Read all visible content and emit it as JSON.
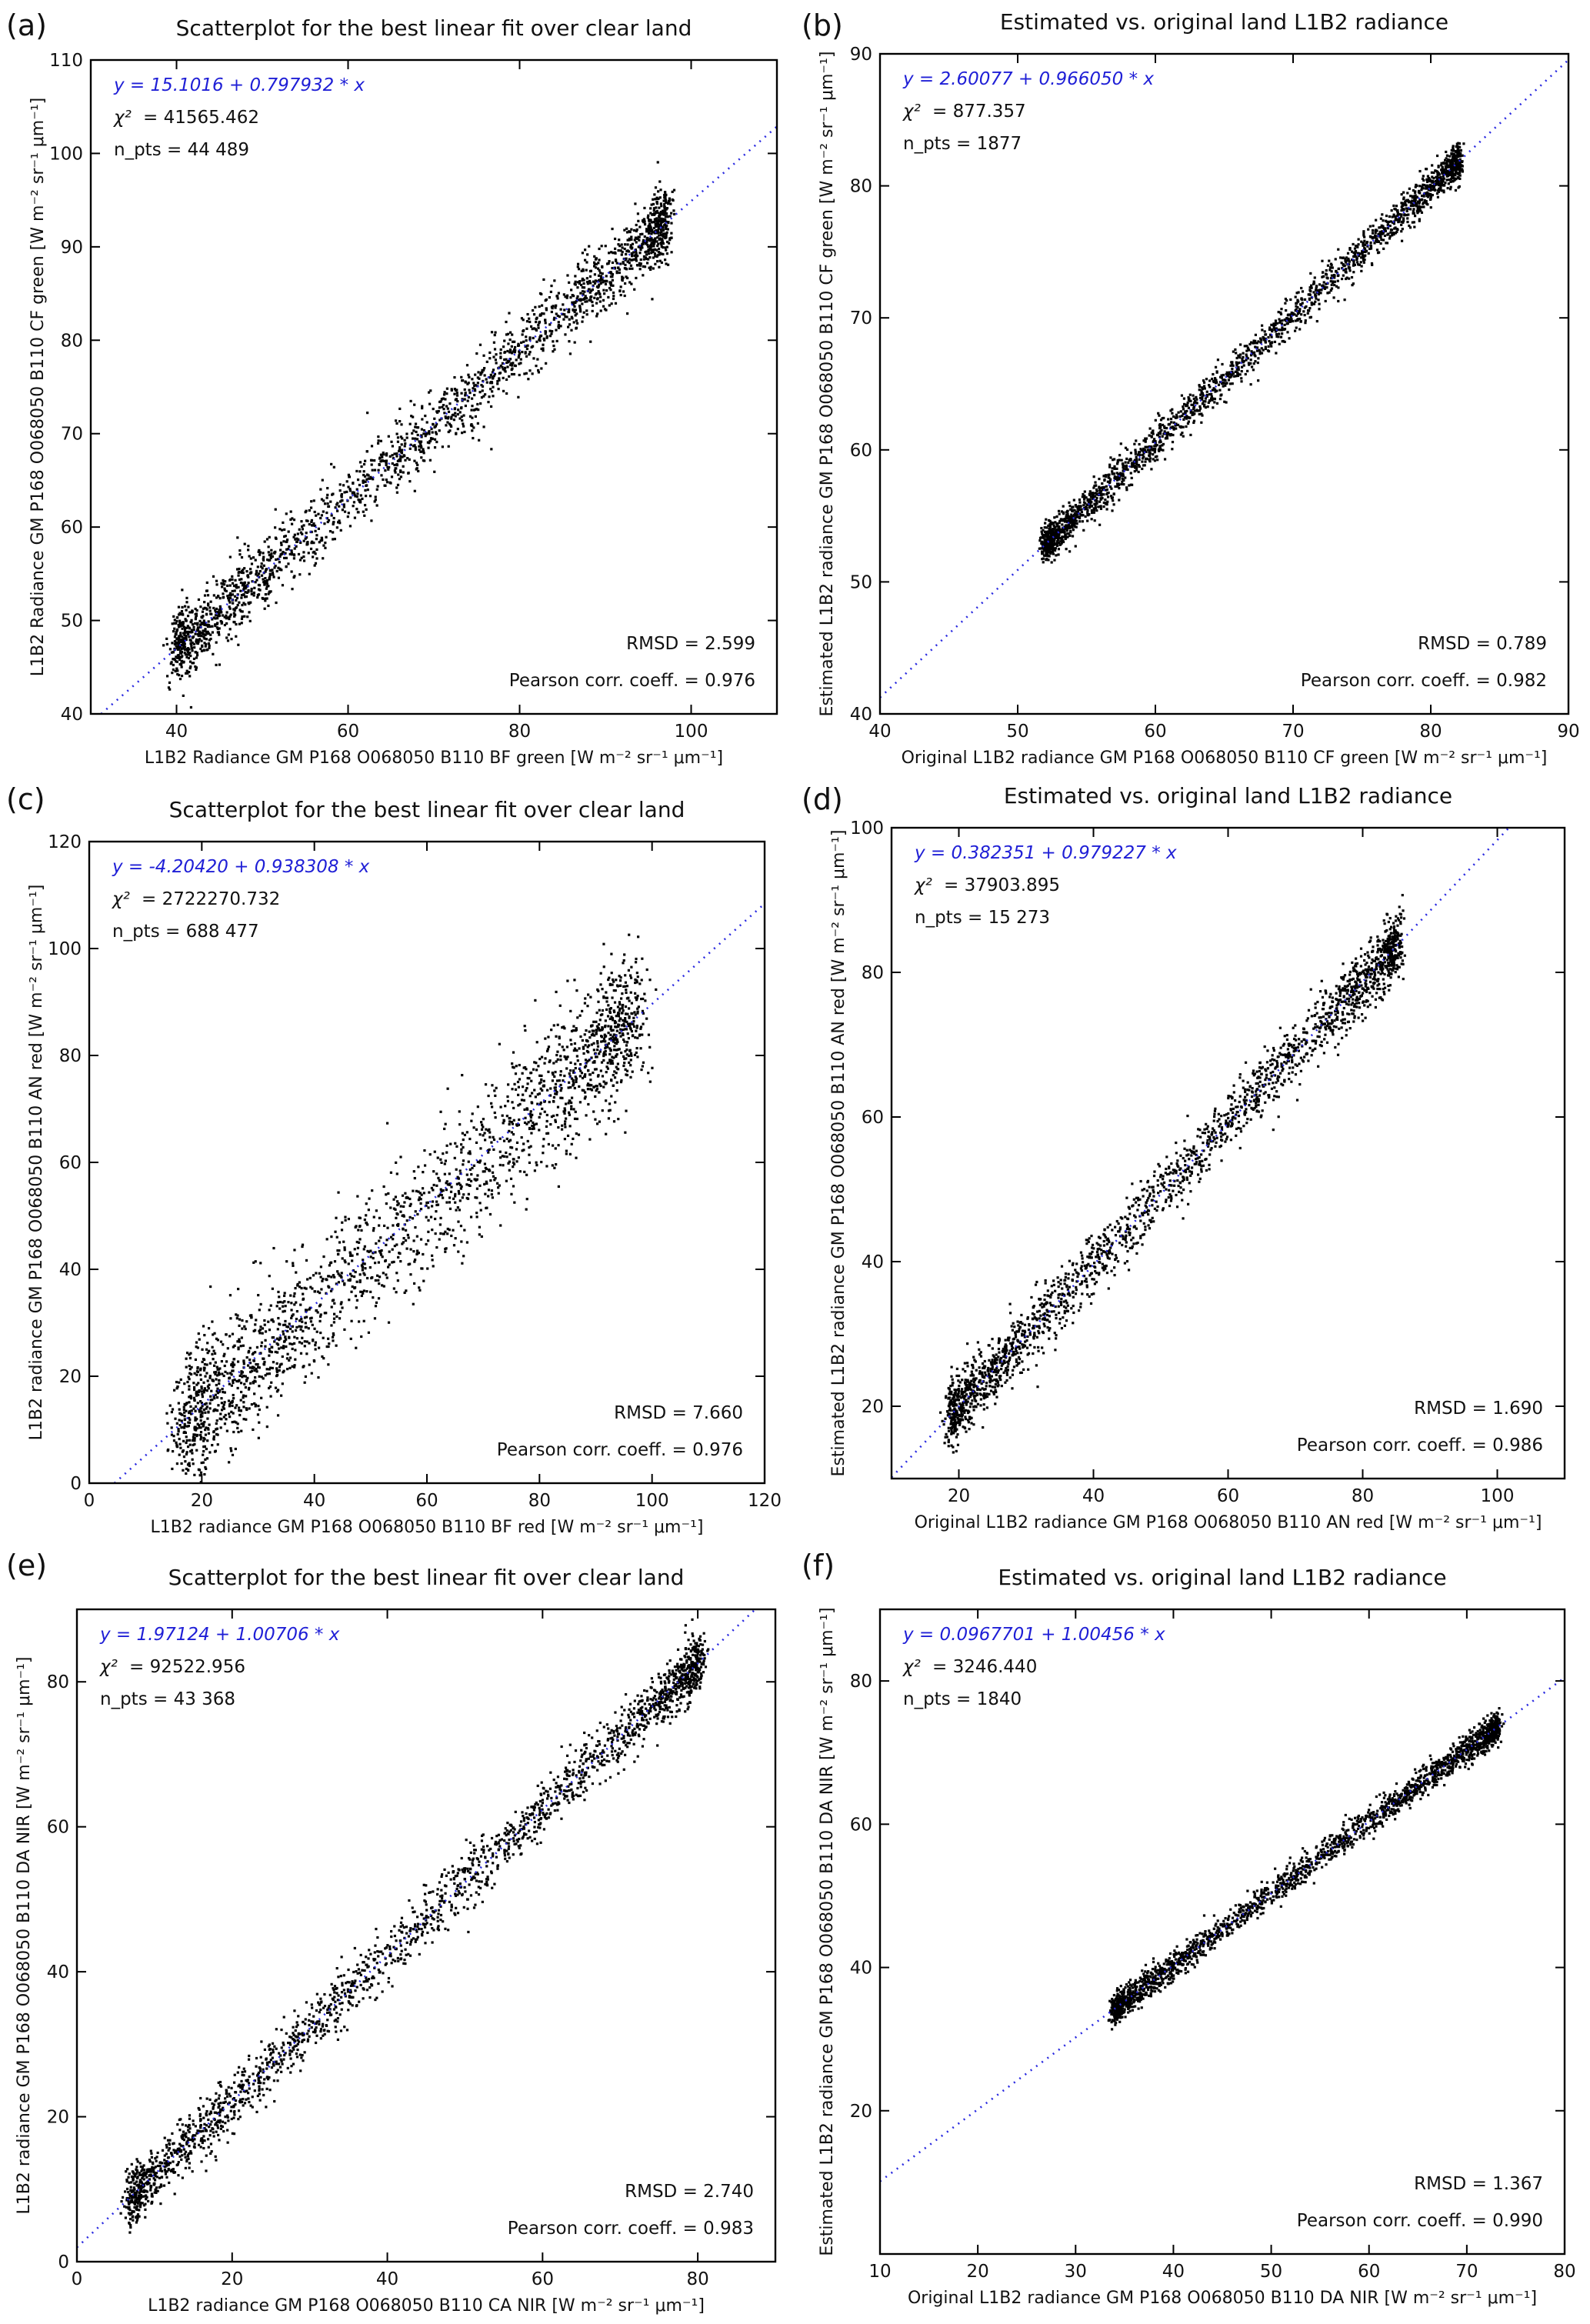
{
  "chart_data": [
    {
      "panel_label": "(a)",
      "type": "scatter",
      "title": "Scatterplot for the best linear fit over clear land",
      "xlabel": "L1B2 Radiance GM P168 O068050 B110 BF green [W m⁻² sr⁻¹ μm⁻¹]",
      "ylabel": "L1B2 Radiance GM P168 O068050 B110 CF green [W m⁻² sr⁻¹ μm⁻¹]",
      "xlim": [
        30,
        110
      ],
      "ylim": [
        40,
        110
      ],
      "xticks": [
        40,
        60,
        80,
        100
      ],
      "yticks": [
        40,
        50,
        60,
        70,
        80,
        90,
        100,
        110
      ],
      "fit": {
        "equation": "y = 15.1016 + 0.797932 * x",
        "intercept": 15.1016,
        "slope": 0.797932
      },
      "chi2_label": "χ²",
      "chi2": "= 41565.462",
      "n_pts": "n_pts = 44 489",
      "rmsd": "RMSD = 2.599",
      "pearson": "Pearson corr. coeff. = 0.976",
      "cloud": {
        "x_range": [
          40,
          97
        ],
        "spread": 1.9
      }
    },
    {
      "panel_label": "(b)",
      "type": "scatter",
      "title": "Estimated vs. original land L1B2 radiance",
      "xlabel": "Original L1B2 radiance GM P168 O068050 B110 CF green [W m⁻² sr⁻¹ μm⁻¹]",
      "ylabel": "Estimated L1B2 radiance GM P168 O068050 B110 CF green [W m⁻² sr⁻¹ μm⁻¹]",
      "xlim": [
        40,
        90
      ],
      "ylim": [
        40,
        90
      ],
      "xticks": [
        40,
        50,
        60,
        70,
        80,
        90
      ],
      "yticks": [
        40,
        50,
        60,
        70,
        80,
        90
      ],
      "fit": {
        "equation": "y = 2.60077 + 0.966050 * x",
        "intercept": 2.60077,
        "slope": 0.96605
      },
      "chi2_label": "χ²",
      "chi2": "= 877.357",
      "n_pts": "n_pts = 1877",
      "rmsd": "RMSD = 0.789",
      "pearson": "Pearson corr. coeff. = 0.982",
      "cloud": {
        "x_range": [
          52,
          82
        ],
        "spread": 0.7
      }
    },
    {
      "panel_label": "(c)",
      "type": "scatter",
      "title": "Scatterplot for the best linear fit over clear land",
      "xlabel": "L1B2 radiance GM P168 O068050 B110 BF red [W m⁻² sr⁻¹ μm⁻¹]",
      "ylabel": "L1B2 radiance GM P168 O068050 B110 AN red [W m⁻² sr⁻¹ μm⁻¹]",
      "xlim": [
        0,
        120
      ],
      "ylim": [
        0,
        120
      ],
      "xticks": [
        0,
        20,
        40,
        60,
        80,
        100,
        120
      ],
      "yticks": [
        0,
        20,
        40,
        60,
        80,
        100,
        120
      ],
      "fit": {
        "equation": "y = -4.20420 + 0.938308 * x",
        "intercept": -4.2042,
        "slope": 0.938308
      },
      "chi2_label": "χ²",
      "chi2": "= 2722270.732",
      "n_pts": "n_pts = 688 477",
      "rmsd": "RMSD = 7.660",
      "pearson": "Pearson corr. coeff. = 0.976",
      "cloud": {
        "x_range": [
          18,
          96
        ],
        "spread": 6.5
      }
    },
    {
      "panel_label": "(d)",
      "type": "scatter",
      "title": "Estimated vs. original land L1B2 radiance",
      "xlabel": "Original L1B2 radiance GM P168 O068050 B110 AN red [W m⁻² sr⁻¹ μm⁻¹]",
      "ylabel": "Estimated L1B2 radiance GM P168 O068050 B110 AN red [W m⁻² sr⁻¹ μm⁻¹]",
      "xlim": [
        10,
        110
      ],
      "ylim": [
        10,
        100
      ],
      "xticks": [
        20,
        40,
        60,
        80,
        100
      ],
      "yticks": [
        20,
        40,
        60,
        80,
        100
      ],
      "fit": {
        "equation": "y = 0.382351 + 0.979227 * x",
        "intercept": 0.382351,
        "slope": 0.979227
      },
      "chi2_label": "χ²",
      "chi2": "= 37903.895",
      "n_pts": "n_pts = 15 273",
      "rmsd": "RMSD = 1.690",
      "pearson": "Pearson corr. coeff. = 0.986",
      "cloud": {
        "x_range": [
          19,
          85
        ],
        "spread": 2.2
      }
    },
    {
      "panel_label": "(e)",
      "type": "scatter",
      "title": "Scatterplot for the best linear fit over clear land",
      "xlabel": "L1B2 radiance GM P168 O068050 B110 CA NIR [W m⁻² sr⁻¹ μm⁻¹]",
      "ylabel": "L1B2 radiance GM P168 O068050 B110 DA NIR [W m⁻² sr⁻¹ μm⁻¹]",
      "xlim": [
        0,
        90
      ],
      "ylim": [
        0,
        90
      ],
      "xticks": [
        0,
        20,
        40,
        60,
        80
      ],
      "yticks": [
        0,
        20,
        40,
        60,
        80
      ],
      "fit": {
        "equation": "y = 1.97124 + 1.00706 * x",
        "intercept": 1.97124,
        "slope": 1.00706
      },
      "chi2_label": "χ²",
      "chi2": "= 92522.956",
      "n_pts": "n_pts = 43 368",
      "rmsd": "RMSD = 2.740",
      "pearson": "Pearson corr. coeff. = 0.983",
      "cloud": {
        "x_range": [
          7,
          80
        ],
        "spread": 2.0
      }
    },
    {
      "panel_label": "(f)",
      "type": "scatter",
      "title": "Estimated vs. original land L1B2 radiance",
      "xlabel": "Original L1B2 radiance GM P168 O068050 B110 DA NIR [W m⁻² sr⁻¹ μm⁻¹]",
      "ylabel": "Estimated L1B2 radiance GM P168 O068050 B110 DA NIR [W m⁻² sr⁻¹ μm⁻¹]",
      "xlim": [
        10,
        80
      ],
      "ylim": [
        0,
        90
      ],
      "xticks": [
        10,
        20,
        30,
        40,
        50,
        60,
        70,
        80
      ],
      "yticks": [
        20,
        40,
        60,
        80
      ],
      "fit": {
        "equation": "y = 0.0967701 + 1.00456 * x",
        "intercept": 0.0967701,
        "slope": 1.00456
      },
      "chi2_label": "χ²",
      "chi2": "= 3246.440",
      "n_pts": "n_pts = 1840",
      "rmsd": "RMSD = 1.367",
      "pearson": "Pearson corr. coeff. = 0.990",
      "cloud": {
        "x_range": [
          34,
          73
        ],
        "spread": 1.0
      }
    }
  ]
}
